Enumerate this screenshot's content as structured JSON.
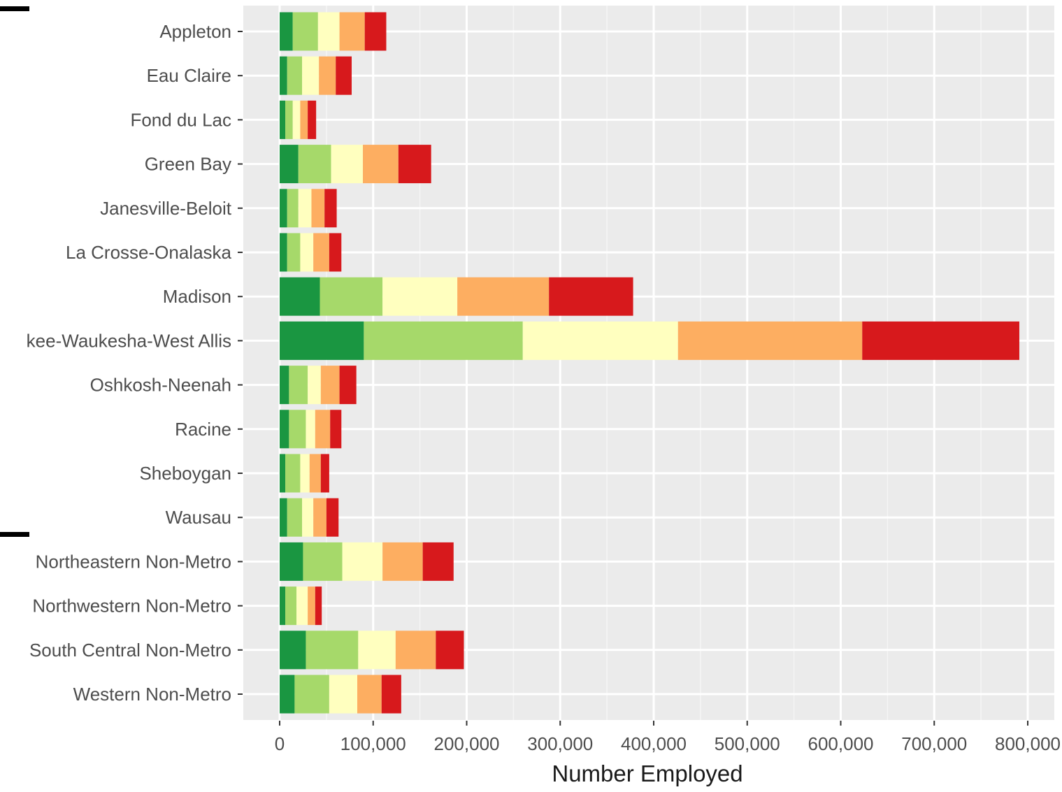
{
  "chart_data": {
    "type": "bar",
    "orientation": "horizontal",
    "stacked": true,
    "title": "",
    "xlabel": "Number Employed",
    "ylabel": "",
    "xlim": [
      0,
      800000
    ],
    "x_ticks": [
      0,
      100000,
      200000,
      300000,
      400000,
      500000,
      600000,
      700000,
      800000
    ],
    "x_tick_labels": [
      "0",
      "100,000",
      "200,000",
      "300,000",
      "400,000",
      "500,000",
      "600,000",
      "700,000",
      "800,000"
    ],
    "grid": true,
    "legend": "none",
    "categories": [
      "Appleton",
      "Eau Claire",
      "Fond du Lac",
      "Green Bay",
      "Janesville-Beloit",
      "La Crosse-Onalaska",
      "Madison",
      "kee-Waukesha-West Allis",
      "Oshkosh-Neenah",
      "Racine",
      "Sheboygan",
      "Wausau",
      "Northeastern Non-Metro",
      "Northwestern Non-Metro",
      "South Central Non-Metro",
      "Western Non-Metro"
    ],
    "series_colors": [
      "#1a9641",
      "#a6d96a",
      "#ffffbf",
      "#fdae61",
      "#d7191c"
    ],
    "series": [
      {
        "values": [
          14000,
          8000,
          6000,
          20000,
          8000,
          8000,
          43000,
          90000,
          10000,
          10000,
          6000,
          8000,
          25000,
          6000,
          28000,
          16000
        ]
      },
      {
        "values": [
          27000,
          16000,
          8000,
          35000,
          12000,
          14000,
          67000,
          170000,
          20000,
          18000,
          16000,
          16000,
          42000,
          12000,
          56000,
          37000
        ]
      },
      {
        "values": [
          23000,
          18000,
          8000,
          34000,
          14000,
          14000,
          80000,
          166000,
          14000,
          10000,
          10000,
          12000,
          43000,
          12000,
          40000,
          30000
        ]
      },
      {
        "values": [
          27000,
          18000,
          8000,
          38000,
          14000,
          17000,
          98000,
          197000,
          20000,
          16000,
          12000,
          14000,
          43000,
          8000,
          43000,
          26000
        ]
      },
      {
        "values": [
          23000,
          17000,
          9000,
          35000,
          13000,
          13000,
          90000,
          168000,
          18000,
          12000,
          9000,
          13000,
          33000,
          7000,
          30000,
          21000
        ]
      }
    ]
  }
}
